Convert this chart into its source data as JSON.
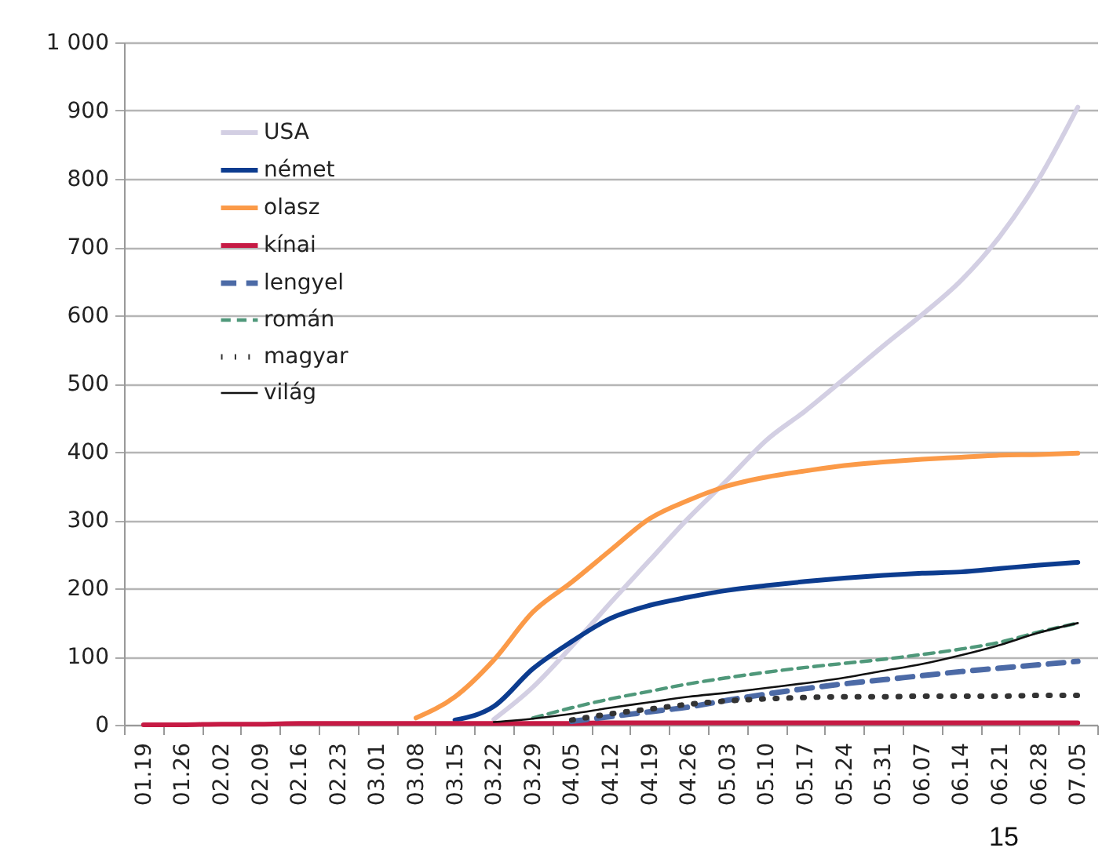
{
  "chart_data": {
    "type": "line",
    "categories": [
      "01.19",
      "01.26",
      "02.02",
      "02.09",
      "02.16",
      "02.23",
      "03.01",
      "03.08",
      "03.15",
      "03.22",
      "03.29",
      "04.05",
      "04.12",
      "04.19",
      "04.26",
      "05.03",
      "05.10",
      "05.17",
      "05.24",
      "05.31",
      "06.07",
      "06.14",
      "06.21",
      "06.28",
      "07.05"
    ],
    "series": [
      {
        "name": "USA",
        "color": "#d3cfe3",
        "line_style": "solid",
        "values": [
          null,
          null,
          null,
          null,
          null,
          null,
          null,
          null,
          null,
          8,
          55,
          115,
          179,
          241,
          303,
          359,
          417,
          460,
          507,
          555,
          601,
          651,
          716,
          800,
          905
        ]
      },
      {
        "name": "német",
        "color": "#0c3c8f",
        "line_style": "solid",
        "values": [
          null,
          null,
          null,
          null,
          null,
          null,
          null,
          null,
          7,
          27,
          82,
          122,
          156,
          175,
          187,
          197,
          204,
          210,
          215,
          219,
          222,
          224,
          229,
          234,
          238
        ]
      },
      {
        "name": "olasz",
        "color": "#fb9a48",
        "line_style": "solid",
        "values": [
          null,
          null,
          null,
          null,
          null,
          null,
          null,
          10,
          41,
          95,
          165,
          209,
          256,
          302,
          329,
          350,
          363,
          372,
          380,
          385,
          389,
          392,
          395,
          396,
          398
        ]
      },
      {
        "name": "kínai",
        "color": "#c61a44",
        "line_style": "solid",
        "values": [
          0,
          0,
          1,
          1,
          2,
          2,
          2,
          2,
          2,
          2,
          2,
          2,
          3,
          3,
          3,
          3,
          3,
          3,
          3,
          3,
          3,
          3,
          3,
          3,
          3
        ]
      },
      {
        "name": "lengyel",
        "color": "#4c6aa6",
        "line_style": "dashed",
        "values": [
          null,
          null,
          null,
          null,
          null,
          null,
          null,
          null,
          null,
          null,
          null,
          5,
          12,
          19,
          26,
          36,
          45,
          53,
          60,
          66,
          72,
          78,
          83,
          88,
          93
        ]
      },
      {
        "name": "román",
        "color": "#4f987a",
        "line_style": "dashed",
        "values": [
          null,
          null,
          null,
          null,
          null,
          null,
          null,
          null,
          null,
          null,
          10,
          25,
          38,
          49,
          60,
          69,
          77,
          84,
          90,
          96,
          103,
          111,
          121,
          136,
          149
        ]
      },
      {
        "name": "magyar",
        "color": "#333333",
        "line_style": "dotted",
        "values": [
          null,
          null,
          null,
          null,
          null,
          null,
          null,
          null,
          null,
          null,
          null,
          7,
          16,
          23,
          30,
          35,
          38,
          40,
          41,
          41,
          42,
          42,
          42,
          43,
          43
        ]
      },
      {
        "name": "világ",
        "color": "#111111",
        "line_style": "solid",
        "values": [
          null,
          null,
          null,
          null,
          null,
          null,
          null,
          null,
          null,
          4,
          9,
          16,
          25,
          33,
          41,
          47,
          54,
          61,
          69,
          79,
          89,
          102,
          117,
          135,
          149
        ]
      }
    ],
    "ylim": [
      0,
      1000
    ],
    "yticks": [
      0,
      100,
      200,
      300,
      400,
      500,
      600,
      700,
      800,
      900,
      {
        "value": 1000,
        "label": "1 000"
      }
    ],
    "grid": "y",
    "legend": "top left",
    "annotations": [
      "15"
    ]
  }
}
